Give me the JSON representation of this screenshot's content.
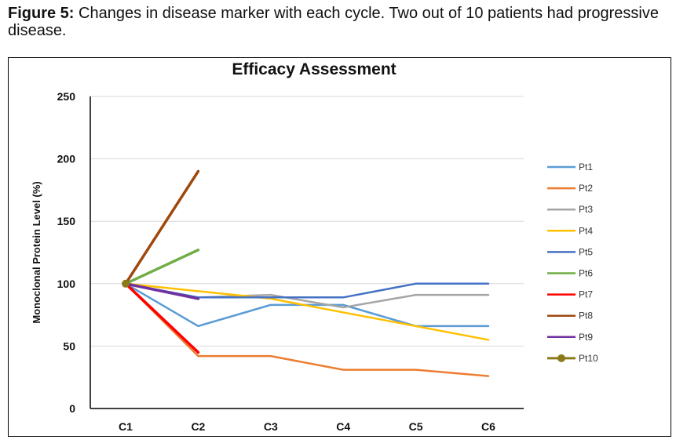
{
  "figure": {
    "label": "Figure 5:",
    "caption": "Changes in disease marker with each cycle. Two out of 10 patients had progressive disease."
  },
  "chart_data": {
    "type": "line",
    "title": "Efficacy Assessment",
    "xlabel": "",
    "ylabel": "Monoclonal Protein Level (%)",
    "categories": [
      "C1",
      "C2",
      "C3",
      "C4",
      "C5",
      "C6"
    ],
    "ylim": [
      0,
      250
    ],
    "yticks": [
      0,
      50,
      100,
      150,
      200,
      250
    ],
    "grid": true,
    "legend_position": "right",
    "series": [
      {
        "name": "Pt1",
        "color": "#5B9BD5",
        "values": [
          100,
          66,
          83,
          83,
          66,
          66
        ],
        "marker": false
      },
      {
        "name": "Pt2",
        "color": "#ED7D31",
        "values": [
          100,
          42,
          42,
          31,
          31,
          26
        ],
        "marker": false
      },
      {
        "name": "Pt3",
        "color": "#A5A5A5",
        "values": [
          100,
          89,
          91,
          81,
          91,
          91
        ],
        "marker": false
      },
      {
        "name": "Pt4",
        "color": "#FFC000",
        "values": [
          100,
          94,
          88,
          77,
          66,
          55
        ],
        "marker": false
      },
      {
        "name": "Pt5",
        "color": "#4472C4",
        "values": [
          100,
          89,
          89,
          89,
          100,
          100
        ],
        "marker": false
      },
      {
        "name": "Pt6",
        "color": "#70AD47",
        "values": [
          100,
          127,
          null,
          null,
          null,
          null
        ],
        "marker": false
      },
      {
        "name": "Pt7",
        "color": "#FF0000",
        "values": [
          100,
          45,
          null,
          null,
          null,
          null
        ],
        "marker": false
      },
      {
        "name": "Pt8",
        "color": "#9E480E",
        "values": [
          100,
          190,
          null,
          null,
          null,
          null
        ],
        "marker": false
      },
      {
        "name": "Pt9",
        "color": "#7030A0",
        "values": [
          100,
          88,
          null,
          null,
          null,
          null
        ],
        "marker": false
      },
      {
        "name": "Pt10",
        "color": "#8B7A1A",
        "values": [
          100,
          null,
          null,
          null,
          null,
          null
        ],
        "marker": true
      }
    ]
  }
}
